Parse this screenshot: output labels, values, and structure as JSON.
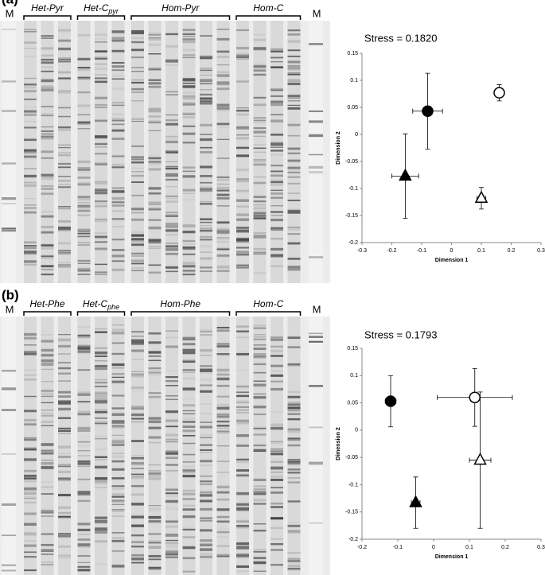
{
  "panels": [
    {
      "label": "(a)",
      "gel": {
        "markers": [
          "M",
          "M"
        ],
        "groups": [
          {
            "text": "Het-Pyr"
          },
          {
            "text": "Het-C",
            "sub": "pyr"
          },
          {
            "text": "Hom-Pyr"
          },
          {
            "text": "Hom-C"
          }
        ]
      }
    },
    {
      "label": "(b)",
      "gel": {
        "markers": [
          "M",
          "M"
        ],
        "groups": [
          {
            "text": "Het-Phe"
          },
          {
            "text": "Het-C",
            "sub": "phe"
          },
          {
            "text": "Hom-Phe"
          },
          {
            "text": "Hom-C"
          }
        ]
      }
    }
  ],
  "chart_data": [
    {
      "type": "scatter",
      "title": "Stress = 0.1820",
      "x_label": "Dimension 1",
      "y_label": "Dimension 2",
      "xlim": [
        -0.3,
        0.3
      ],
      "xticks": [
        -0.3,
        -0.2,
        -0.1,
        0,
        0.1,
        0.2,
        0.3
      ],
      "ylim": [
        -0.2,
        0.15
      ],
      "yticks": [
        -0.2,
        -0.15,
        -0.1,
        -0.05,
        0,
        0.05,
        0.1,
        0.15
      ],
      "series": [
        {
          "marker": "circle",
          "color": "#000000",
          "fill": "#000000",
          "x": [
            -0.08
          ],
          "values": [
            0.043
          ],
          "x_err": [
            0.05
          ],
          "errors": [
            0.07
          ]
        },
        {
          "marker": "circle",
          "color": "#000000",
          "fill": "#ffffff",
          "x": [
            0.16
          ],
          "values": [
            0.077
          ],
          "x_err": [
            0.015
          ],
          "errors": [
            0.015
          ]
        },
        {
          "marker": "triangle",
          "color": "#000000",
          "fill": "#000000",
          "x": [
            -0.155
          ],
          "values": [
            -0.077
          ],
          "x_err": [
            0.045
          ],
          "errors": [
            0.078
          ]
        },
        {
          "marker": "triangle",
          "color": "#000000",
          "fill": "#ffffff",
          "x": [
            0.1
          ],
          "values": [
            -0.118
          ],
          "x_err": [
            0.015
          ],
          "errors": [
            0.02
          ]
        }
      ]
    },
    {
      "type": "scatter",
      "title": "Stress = 0.1793",
      "x_label": "Dimension 1",
      "y_label": "Dimension 2",
      "xlim": [
        -0.2,
        0.3
      ],
      "xticks": [
        -0.2,
        -0.1,
        0,
        0.1,
        0.2,
        0.3
      ],
      "ylim": [
        -0.2,
        0.15
      ],
      "yticks": [
        -0.2,
        -0.15,
        -0.1,
        -0.05,
        0,
        0.05,
        0.1,
        0.15
      ],
      "series": [
        {
          "marker": "circle",
          "color": "#000000",
          "fill": "#000000",
          "x": [
            -0.12
          ],
          "values": [
            0.053
          ],
          "x_err": [
            0.015
          ],
          "errors": [
            0.047
          ]
        },
        {
          "marker": "circle",
          "color": "#000000",
          "fill": "#ffffff",
          "x": [
            0.115
          ],
          "values": [
            0.06
          ],
          "x_err": [
            0.105
          ],
          "errors": [
            0.053
          ]
        },
        {
          "marker": "triangle",
          "color": "#000000",
          "fill": "#000000",
          "x": [
            -0.05
          ],
          "values": [
            -0.133
          ],
          "x_err": [
            0.012
          ],
          "errors": [
            0.047
          ]
        },
        {
          "marker": "triangle",
          "color": "#000000",
          "fill": "#ffffff",
          "x": [
            0.13
          ],
          "values": [
            -0.055
          ],
          "x_err": [
            0.03
          ],
          "errors": [
            0.125
          ]
        }
      ]
    }
  ]
}
